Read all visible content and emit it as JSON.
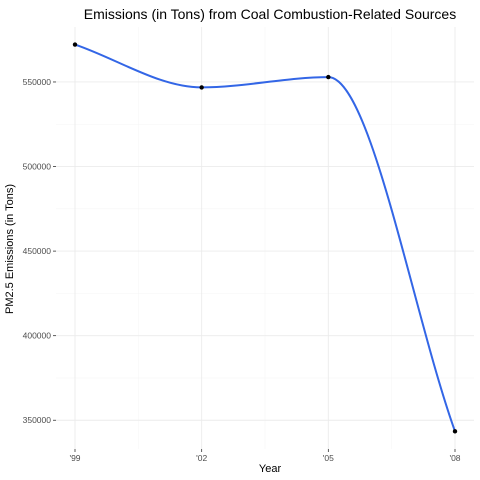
{
  "chart_data": {
    "type": "line",
    "title": "Emissions (in Tons) from Coal Combustion-Related Sources",
    "xlabel": "Year",
    "ylabel": "PM2.5 Emissions (in Tons)",
    "x": [
      1999,
      2002,
      2005,
      2008
    ],
    "x_tick_labels": [
      "'99",
      "'02",
      "'05",
      "'08"
    ],
    "y": [
      572126,
      546789,
      552881,
      343432
    ],
    "y_ticks": [
      350000,
      400000,
      450000,
      500000,
      550000
    ],
    "y_tick_labels": [
      "350000",
      "400000",
      "450000",
      "500000",
      "550000"
    ],
    "ylim": [
      333000,
      582500
    ],
    "xlim": [
      1998.55,
      2008.45
    ],
    "grid": true,
    "line_color": "#3366e6",
    "point_color": "#000000"
  }
}
